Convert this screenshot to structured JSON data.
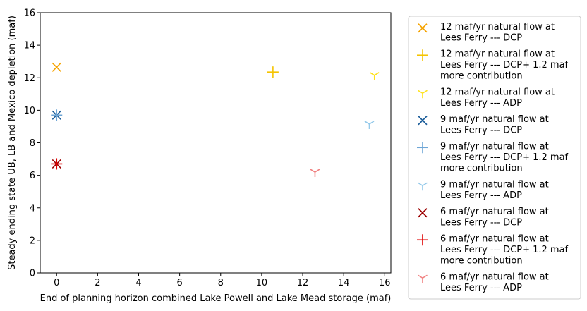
{
  "chart_data": {
    "type": "scatter",
    "xlabel": "End of planning horizon combined Lake Powell and Lake Mead storage (maf)",
    "ylabel": "Steady ending state UB, LB and Mexico depletion (maf)",
    "xlim": [
      -0.8,
      16.3
    ],
    "ylim": [
      0,
      16
    ],
    "xticks": [
      "0",
      "2",
      "4",
      "6",
      "8",
      "10",
      "12",
      "14",
      "16"
    ],
    "yticks": [
      "0",
      "2",
      "4",
      "6",
      "8",
      "10",
      "12",
      "14",
      "16"
    ],
    "grid": false,
    "legend_position": "outside-right",
    "series": [
      {
        "name": "12 maf/yr natural flow at Lees Ferry --- DCP",
        "marker": "x",
        "color": "#f5a300",
        "points": [
          [
            0,
            12.65
          ]
        ]
      },
      {
        "name": "12 maf/yr natural flow at Lees Ferry --- DCP+ 1.2 maf more contribution",
        "marker": "+",
        "color": "#f5c400",
        "points": [
          [
            10.55,
            12.35
          ]
        ]
      },
      {
        "name": "12 maf/yr natural flow at Lees Ferry --- ADP",
        "marker": "tri",
        "color": "#ffe21a",
        "points": [
          [
            15.5,
            12.15
          ]
        ]
      },
      {
        "name": "9 maf/yr natural flow at Lees Ferry --- DCP",
        "marker": "x",
        "color": "#1a5c99",
        "points": [
          [
            0,
            9.7
          ]
        ]
      },
      {
        "name": "9 maf/yr natural flow at Lees Ferry --- DCP+ 1.2 maf more contribution",
        "marker": "+",
        "color": "#6ea6d6",
        "points": [
          [
            0,
            9.7
          ]
        ]
      },
      {
        "name": "9 maf/yr natural flow at Lees Ferry --- ADP",
        "marker": "tri",
        "color": "#93c9ea",
        "points": [
          [
            15.25,
            9.15
          ]
        ]
      },
      {
        "name": "6 maf/yr natural flow at Lees Ferry --- DCP",
        "marker": "x",
        "color": "#9c0000",
        "points": [
          [
            0,
            6.7
          ]
        ]
      },
      {
        "name": "6 maf/yr natural flow at Lees Ferry --- DCP+ 1.2 maf more contribution",
        "marker": "+",
        "color": "#e00000",
        "points": [
          [
            0,
            6.7
          ]
        ]
      },
      {
        "name": "6 maf/yr natural flow at Lees Ferry --- ADP",
        "marker": "tri",
        "color": "#f08080",
        "points": [
          [
            12.6,
            6.2
          ]
        ]
      }
    ]
  },
  "legend_lines": [
    [
      "12 maf/yr natural flow at",
      "Lees Ferry --- DCP"
    ],
    [
      "12 maf/yr natural flow at",
      "Lees Ferry --- DCP+ 1.2 maf",
      "more contribution"
    ],
    [
      "12 maf/yr natural flow at",
      "Lees Ferry --- ADP"
    ],
    [
      "9 maf/yr natural flow at",
      "Lees Ferry --- DCP"
    ],
    [
      "9 maf/yr natural flow at",
      "Lees Ferry --- DCP+ 1.2 maf",
      "more contribution"
    ],
    [
      "9 maf/yr natural flow at",
      "Lees Ferry --- ADP"
    ],
    [
      "6 maf/yr natural flow at",
      "Lees Ferry --- DCP"
    ],
    [
      "6 maf/yr natural flow at",
      "Lees Ferry --- DCP+ 1.2 maf",
      "more contribution"
    ],
    [
      "6 maf/yr natural flow at",
      "Lees Ferry --- ADP"
    ]
  ]
}
